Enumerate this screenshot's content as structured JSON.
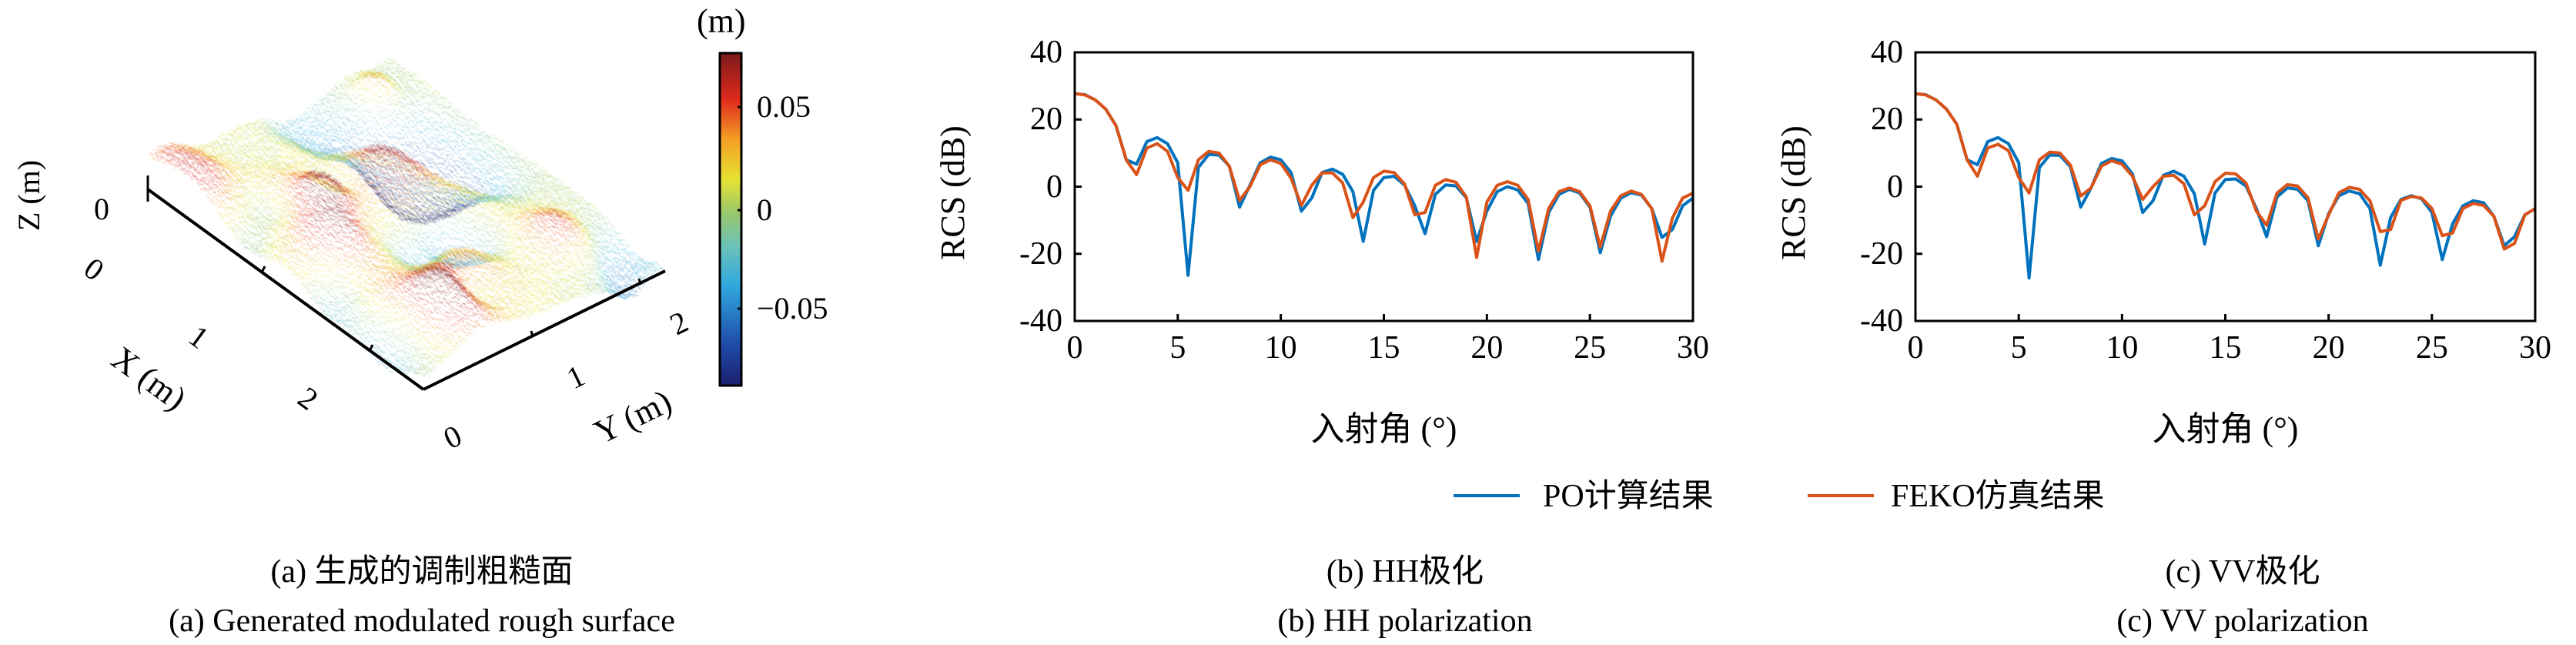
{
  "figure_a": {
    "type": "surface",
    "colorbar_unit": "(m)",
    "colorbar_ticks": [
      "0.05",
      "0",
      "−0.05"
    ],
    "colorbar_tick_values": [
      0.05,
      0,
      -0.05
    ],
    "colorbar_range": [
      -0.088,
      0.077
    ],
    "z_label": "Z (m)",
    "z_ticks": [
      "0"
    ],
    "x_label": "X (m)",
    "x_ticks": [
      "0",
      "1",
      "2"
    ],
    "y_label": "Y (m)",
    "y_ticks": [
      "0",
      "1",
      "2"
    ],
    "caption_cn": "(a) 生成的调制粗糙面",
    "caption_en": "(a) Generated modulated rough surface"
  },
  "legend": {
    "series_1": "PO计算结果",
    "series_2": "FEKO仿真结果"
  },
  "colors": {
    "series_1": "#0072BD",
    "series_2": "#D95319"
  },
  "chart_data": [
    {
      "type": "line",
      "title": "",
      "caption_cn": "(b) HH极化",
      "caption_en": "(b) HH polarization",
      "xlabel": "入射角 (°)",
      "ylabel": "RCS (dB)",
      "xlim": [
        0,
        30
      ],
      "ylim": [
        -40,
        40
      ],
      "xticks": [
        "0",
        "5",
        "10",
        "15",
        "20",
        "25",
        "30"
      ],
      "yticks": [
        "40",
        "20",
        "0",
        "-20",
        "-40"
      ],
      "x": [
        0,
        0.5,
        1,
        1.5,
        2,
        2.5,
        3,
        3.5,
        4,
        4.5,
        5,
        5.5,
        6,
        6.5,
        7,
        7.5,
        8,
        8.5,
        9,
        9.5,
        10,
        10.5,
        11,
        11.5,
        12,
        12.5,
        13,
        13.5,
        14,
        14.5,
        15,
        15.5,
        16,
        16.5,
        17,
        17.5,
        18,
        18.5,
        19,
        19.5,
        20,
        20.5,
        21,
        21.5,
        22,
        22.5,
        23,
        23.5,
        24,
        24.5,
        25,
        25.5,
        26,
        26.5,
        27,
        27.5,
        28,
        28.5,
        29,
        29.5,
        30
      ],
      "series": [
        {
          "name": "PO计算结果",
          "values": [
            27.7,
            27.4,
            25.8,
            23.1,
            18.2,
            8,
            6.7,
            13.4,
            14.6,
            12.8,
            7.1,
            -26.4,
            5.7,
            9.6,
            9.4,
            6.1,
            -6.1,
            0.4,
            7.1,
            8.8,
            8,
            4.2,
            -7.3,
            -3.4,
            4.2,
            5.2,
            3.7,
            -1.5,
            -16.3,
            -1.1,
            2.7,
            3.1,
            0.5,
            -5.7,
            -14,
            -2.3,
            0.5,
            0.2,
            -3.3,
            -16.3,
            -7.3,
            -1.5,
            0,
            -1,
            -5,
            -21.7,
            -7.7,
            -2.3,
            -0.8,
            -1.9,
            -6.1,
            -19.7,
            -8.8,
            -3.4,
            -1.8,
            -2.5,
            -6.5,
            -15.1,
            -12.8,
            -5.7,
            -3.4
          ]
        },
        {
          "name": "FEKO仿真结果",
          "values": [
            27.7,
            27.3,
            25.8,
            23.1,
            18.2,
            8,
            3.6,
            11.5,
            12.8,
            10.5,
            2.7,
            -1.1,
            8,
            10.5,
            10,
            6.1,
            -4.1,
            0,
            6.5,
            8,
            6.9,
            2.5,
            -5.6,
            0.4,
            4.1,
            4.1,
            1.1,
            -9.2,
            -4.6,
            2.7,
            4.6,
            4.2,
            0.8,
            -8.4,
            -7.7,
            0.4,
            2.1,
            1.3,
            -3.1,
            -21.1,
            -4.6,
            0.4,
            1.5,
            0.4,
            -3.8,
            -19.2,
            -6.5,
            -1.5,
            -0.4,
            -1.5,
            -5.7,
            -18,
            -7.3,
            -2.7,
            -1.3,
            -2.3,
            -6.5,
            -22.2,
            -9.4,
            -3.4,
            -1.9
          ]
        }
      ]
    },
    {
      "type": "line",
      "title": "",
      "caption_cn": "(c) VV极化",
      "caption_en": "(c) VV polarization",
      "xlabel": "入射角 (°)",
      "ylabel": "RCS (dB)",
      "xlim": [
        0,
        30
      ],
      "ylim": [
        -40,
        40
      ],
      "xticks": [
        "0",
        "5",
        "10",
        "15",
        "20",
        "25",
        "30"
      ],
      "yticks": [
        "40",
        "20",
        "0",
        "-20",
        "-40"
      ],
      "x": [
        0,
        0.5,
        1,
        1.5,
        2,
        2.5,
        3,
        3.5,
        4,
        4.5,
        5,
        5.5,
        6,
        6.5,
        7,
        7.5,
        8,
        8.5,
        9,
        9.5,
        10,
        10.5,
        11,
        11.5,
        12,
        12.5,
        13,
        13.5,
        14,
        14.5,
        15,
        15.5,
        16,
        16.5,
        17,
        17.5,
        18,
        18.5,
        19,
        19.5,
        20,
        20.5,
        21,
        21.5,
        22,
        22.5,
        23,
        23.5,
        24,
        24.5,
        25,
        25.5,
        26,
        26.5,
        27,
        27.5,
        28,
        28.5,
        29,
        29.5,
        30
      ],
      "series": [
        {
          "name": "PO计算结果",
          "values": [
            27.7,
            27.4,
            25.8,
            23.1,
            18.6,
            8,
            6.5,
            13.4,
            14.6,
            12.8,
            7.1,
            -27.2,
            5.7,
            9.4,
            9.3,
            5.9,
            -6.1,
            -0.4,
            6.9,
            8.4,
            7.7,
            3.8,
            -7.7,
            -4.2,
            3.4,
            4.6,
            3.1,
            -2.1,
            -17.1,
            -1.9,
            2.1,
            2.3,
            0.2,
            -6.5,
            -14.9,
            -3.1,
            -0.4,
            -0.8,
            -4.2,
            -17.6,
            -8,
            -2.7,
            -1.3,
            -2.1,
            -6.5,
            -23.4,
            -9.2,
            -3.8,
            -2.7,
            -3.6,
            -7.7,
            -21.7,
            -11.1,
            -5.7,
            -4.2,
            -4.8,
            -8.8,
            -17.6,
            -14.9,
            -8.4,
            -6.5
          ]
        },
        {
          "name": "FEKO仿真结果",
          "values": [
            27.7,
            27.3,
            25.8,
            23.1,
            18.6,
            8,
            3.1,
            11.5,
            12.6,
            10.7,
            2.7,
            -1.9,
            8,
            10.3,
            10,
            6.4,
            -2.8,
            -0.4,
            6.1,
            7.7,
            6.7,
            3.1,
            -3.8,
            0,
            3.1,
            3.4,
            0.8,
            -8.4,
            -5.7,
            1.5,
            4,
            3.8,
            1.1,
            -7.3,
            -11.5,
            -1.9,
            0.6,
            0.2,
            -3.3,
            -15.6,
            -8.4,
            -1.8,
            -0.2,
            -0.8,
            -4.2,
            -13.4,
            -12.8,
            -4.1,
            -2.9,
            -3.4,
            -6.5,
            -14.6,
            -13.8,
            -6.5,
            -5,
            -5.6,
            -8.8,
            -18.6,
            -16.9,
            -8.4,
            -6.5
          ]
        }
      ]
    }
  ]
}
